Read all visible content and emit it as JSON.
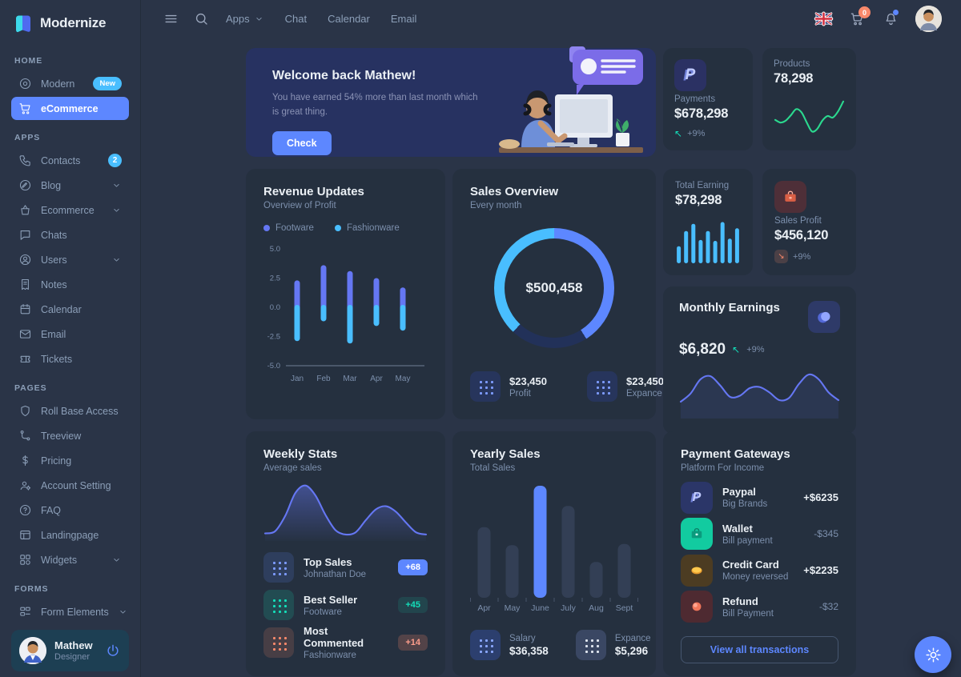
{
  "brand": {
    "name": "Modernize"
  },
  "topbar": {
    "menu": [
      "Apps",
      "Chat",
      "Calendar",
      "Email"
    ],
    "cart_badge": "0"
  },
  "sidebar": {
    "sections": [
      {
        "label": "HOME",
        "items": [
          {
            "label": "Modern",
            "icon": "aperture",
            "badge": "New",
            "badge_style": "pill"
          },
          {
            "label": "eCommerce",
            "icon": "cart",
            "active": true
          }
        ]
      },
      {
        "label": "APPS",
        "items": [
          {
            "label": "Contacts",
            "icon": "phone",
            "badge": "2",
            "badge_style": "circle"
          },
          {
            "label": "Blog",
            "icon": "pen",
            "chevron": true
          },
          {
            "label": "Ecommerce",
            "icon": "basket",
            "chevron": true
          },
          {
            "label": "Chats",
            "icon": "message"
          },
          {
            "label": "Users",
            "icon": "user",
            "chevron": true
          },
          {
            "label": "Notes",
            "icon": "note"
          },
          {
            "label": "Calendar",
            "icon": "calendar"
          },
          {
            "label": "Email",
            "icon": "mail"
          },
          {
            "label": "Tickets",
            "icon": "ticket"
          }
        ]
      },
      {
        "label": "PAGES",
        "items": [
          {
            "label": "Roll Base Access",
            "icon": "shield"
          },
          {
            "label": "Treeview",
            "icon": "tree"
          },
          {
            "label": "Pricing",
            "icon": "dollar"
          },
          {
            "label": "Account Setting",
            "icon": "usercog"
          },
          {
            "label": "FAQ",
            "icon": "help"
          },
          {
            "label": "Landingpage",
            "icon": "layout"
          },
          {
            "label": "Widgets",
            "icon": "widgets",
            "chevron": true
          }
        ]
      },
      {
        "label": "FORMS",
        "items": [
          {
            "label": "Form Elements",
            "icon": "form",
            "chevron": true
          }
        ]
      }
    ],
    "profile": {
      "name": "Mathew",
      "role": "Designer"
    }
  },
  "welcome": {
    "title": "Welcome back Mathew!",
    "line1": "You have earned 54% more than last month which",
    "line2": "is great thing.",
    "button": "Check"
  },
  "stats": {
    "payments": {
      "label": "Payments",
      "value": "$678,298",
      "trend": "+9%"
    },
    "products": {
      "label": "Products",
      "value": "78,298"
    },
    "total_earning": {
      "label": "Total Earning",
      "value": "$78,298"
    },
    "sales_profit": {
      "label": "Sales Profit",
      "value": "$456,120",
      "trend": "+9%"
    },
    "monthly_earnings": {
      "title": "Monthly Earnings",
      "value": "$6,820",
      "trend": "+9%"
    }
  },
  "revenue_card": {
    "title": "Revenue Updates",
    "subtitle": "Overview of Profit"
  },
  "sales_card": {
    "title": "Sales Overview",
    "subtitle": "Every month",
    "footer": [
      {
        "value": "$23,450",
        "label": "Profit"
      },
      {
        "value": "$23,450",
        "label": "Expance"
      }
    ]
  },
  "weekly_card": {
    "title": "Weekly Stats",
    "subtitle": "Average sales",
    "rows": [
      {
        "title": "Top Sales",
        "subtitle": "Johnathan Doe",
        "badge": "+68",
        "color": "blue"
      },
      {
        "title": "Best Seller",
        "subtitle": "Footware",
        "badge": "+45",
        "color": "green"
      },
      {
        "title": "Most Commented",
        "subtitle": "Fashionware",
        "badge": "+14",
        "color": "red"
      }
    ]
  },
  "yearly_card": {
    "title": "Yearly Sales",
    "subtitle": "Total Sales",
    "footer": [
      {
        "label": "Salary",
        "value": "$36,358",
        "style": "solid"
      },
      {
        "label": "Expance",
        "value": "$5,296",
        "style": "gray"
      }
    ]
  },
  "gateways_card": {
    "title": "Payment Gateways",
    "subtitle": "Platform For Income",
    "rows": [
      {
        "title": "Paypal",
        "subtitle": "Big Brands",
        "amount": "+$6235",
        "emph": true,
        "icon": "paypal"
      },
      {
        "title": "Wallet",
        "subtitle": "Bill payment",
        "amount": "-$345",
        "emph": false,
        "icon": "wallet"
      },
      {
        "title": "Credit Card",
        "subtitle": "Money reversed",
        "amount": "+$2235",
        "emph": true,
        "icon": "card"
      },
      {
        "title": "Refund",
        "subtitle": "Bill Payment",
        "amount": "-$32",
        "emph": false,
        "icon": "refund"
      }
    ],
    "button": "View all transactions"
  },
  "chart_data": [
    {
      "id": "products-sparkline",
      "type": "line",
      "values": [
        40,
        33,
        38,
        52,
        68,
        60,
        34,
        10,
        16,
        38,
        50,
        46,
        62,
        88
      ],
      "color": "#2BD98F"
    },
    {
      "id": "revenue-updates",
      "type": "range-bar",
      "categories": [
        "Jan",
        "Feb",
        "Mar",
        "Apr",
        "May"
      ],
      "ylim": [
        -5,
        5
      ],
      "yticks": [
        "5.0",
        "2.5",
        "0.0",
        "-2.5",
        "-5.0"
      ],
      "series": [
        {
          "name": "Footware",
          "color": "#6577F3",
          "values": [
            2.3,
            3.6,
            3.1,
            2.5,
            1.7
          ]
        },
        {
          "name": "Fashionware",
          "color": "#49BEFF",
          "values": [
            -2.9,
            -1.2,
            -3.1,
            -1.6,
            -2.0
          ]
        }
      ]
    },
    {
      "id": "sales-overview-donut",
      "type": "donut",
      "center_label": "$500,458",
      "segments": [
        {
          "name": "Profit",
          "color": "#5D87FF",
          "pct": 41
        },
        {
          "name": "Remainder",
          "color": "#223159",
          "pct": 21
        },
        {
          "name": "Expance",
          "color": "#49BEFF",
          "pct": 38
        }
      ]
    },
    {
      "id": "total-earning-bars",
      "type": "bar",
      "values": [
        38,
        72,
        88,
        52,
        72,
        50,
        92,
        55,
        78
      ],
      "color": "#49BEFF"
    },
    {
      "id": "monthly-earnings-line",
      "type": "line",
      "values": [
        25,
        40,
        66,
        72,
        55,
        34,
        36,
        50,
        52,
        42,
        28,
        32,
        58,
        75,
        66,
        42,
        28
      ],
      "color": "#6577F3",
      "fill": "rgba(101,119,243,0.10)"
    },
    {
      "id": "weekly-stats-area",
      "type": "area",
      "values": [
        8,
        12,
        40,
        82,
        96,
        78,
        42,
        14,
        6,
        10,
        32,
        52,
        58,
        48,
        28,
        10,
        6
      ],
      "color": "#6577F3"
    },
    {
      "id": "yearly-sales-bars",
      "type": "bar",
      "categories": [
        "Apr",
        "May",
        "June",
        "July",
        "Aug",
        "Sept"
      ],
      "values": [
        63,
        47,
        100,
        82,
        32,
        48
      ],
      "highlight_index": 2,
      "color": "#333F55",
      "highlight_color": "#5D87FF"
    }
  ],
  "colors": {
    "primary": "#5D87FF",
    "secondary": "#49BEFF",
    "success": "#13DEB9",
    "danger": "#FA896B",
    "warning": "#FFAE1F"
  }
}
